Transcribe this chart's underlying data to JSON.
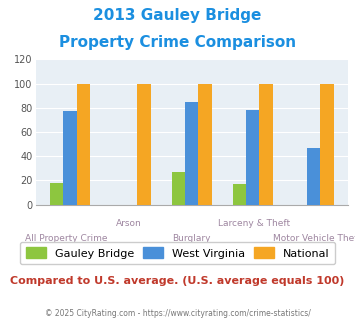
{
  "title_line1": "2013 Gauley Bridge",
  "title_line2": "Property Crime Comparison",
  "categories": [
    "All Property Crime",
    "Arson",
    "Burglary",
    "Larceny & Theft",
    "Motor Vehicle Theft"
  ],
  "gauley_bridge": [
    18,
    0,
    27,
    17,
    0
  ],
  "west_virginia": [
    77,
    0,
    85,
    78,
    47
  ],
  "national": [
    100,
    100,
    100,
    100,
    100
  ],
  "bar_colors": {
    "gauley_bridge": "#8DC63F",
    "west_virginia": "#4A90D9",
    "national": "#F5A623"
  },
  "ylim": [
    0,
    120
  ],
  "yticks": [
    0,
    20,
    40,
    60,
    80,
    100,
    120
  ],
  "title_color": "#1B8FE0",
  "axis_label_color": "#9E86A0",
  "background_color": "#E8EFF5",
  "footer_text": "Compared to U.S. average. (U.S. average equals 100)",
  "copyright_text": "© 2025 CityRating.com - https://www.cityrating.com/crime-statistics/",
  "footer_color": "#C0392B",
  "copyright_color": "#777777",
  "copyright_link_color": "#1B8FE0",
  "legend_labels": [
    "Gauley Bridge",
    "West Virginia",
    "National"
  ],
  "upper_label_indices": [
    1,
    3
  ],
  "lower_label_indices": [
    0,
    2,
    4
  ]
}
